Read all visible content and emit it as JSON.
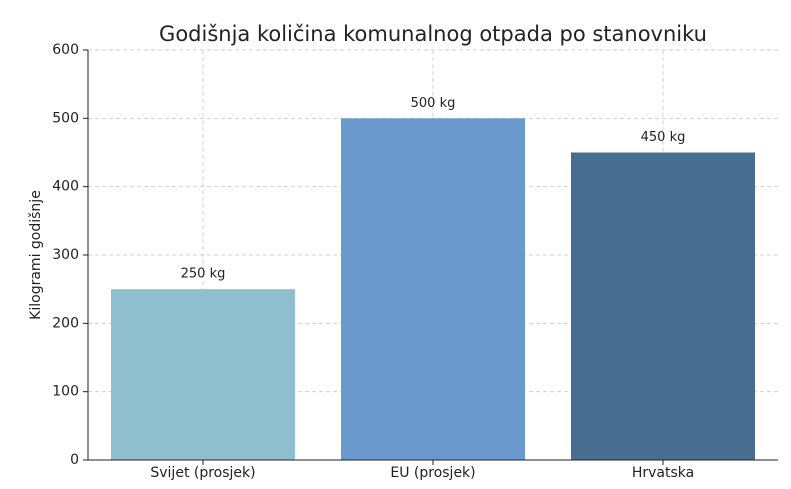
{
  "chart_data": {
    "type": "bar",
    "title": "Godišnja količina komunalnog otpada po stanovniku",
    "y_label": "Kilogrami godišnje",
    "categories": [
      "Svijet (prosjek)",
      "EU (prosjek)",
      "Hrvatska"
    ],
    "values": [
      250,
      500,
      450
    ],
    "value_labels": [
      "250 kg",
      "500 kg",
      "450 kg"
    ],
    "colors": [
      "#8fbfcf",
      "#6a9acd",
      "#476d91"
    ],
    "ylim": [
      0,
      600
    ],
    "yticks": [
      0,
      100,
      200,
      300,
      400,
      500,
      600
    ],
    "grid": true
  }
}
